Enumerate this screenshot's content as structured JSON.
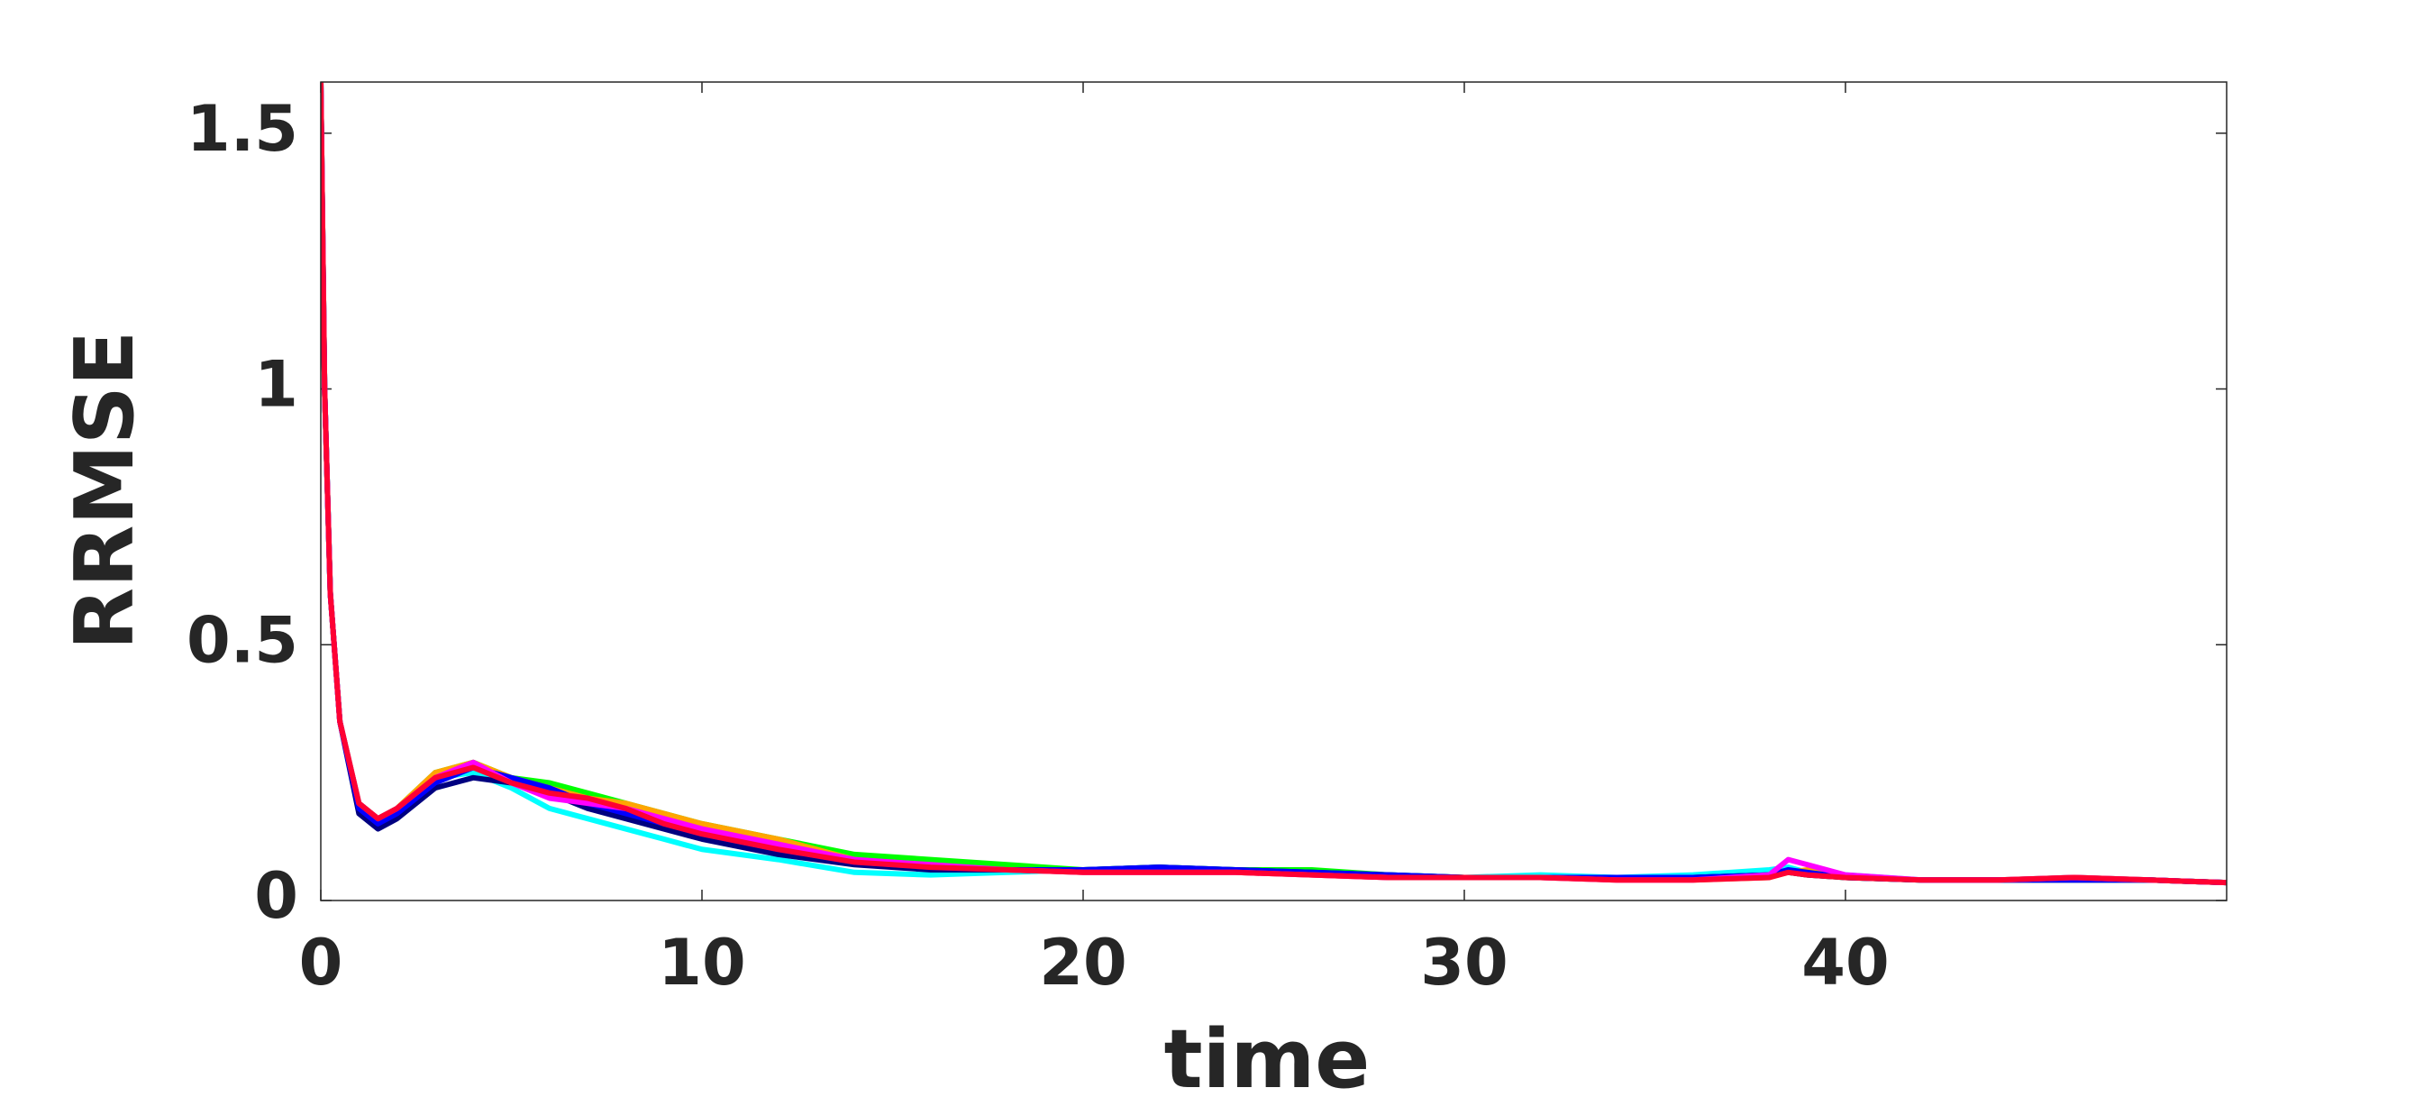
{
  "chart_data": {
    "type": "line",
    "xlabel": "time",
    "ylabel": "RRMSE",
    "xlim": [
      0,
      50
    ],
    "ylim": [
      0,
      1.6
    ],
    "xticks": [
      0,
      10,
      20,
      30,
      40
    ],
    "yticks": [
      0,
      0.5,
      1,
      1.5
    ],
    "x": [
      0,
      0.1,
      0.25,
      0.5,
      1,
      1.5,
      2,
      3,
      4,
      5,
      6,
      7,
      8,
      9,
      10,
      12,
      14,
      16,
      18,
      20,
      22,
      24,
      26,
      28,
      30,
      32,
      34,
      36,
      38,
      38.5,
      39,
      40,
      42,
      44,
      46,
      48,
      50
    ],
    "series": [
      {
        "color": "#00ffff",
        "values": [
          1.6,
          1.0,
          0.6,
          0.35,
          0.19,
          0.16,
          0.18,
          0.24,
          0.25,
          0.22,
          0.18,
          0.16,
          0.14,
          0.12,
          0.1,
          0.08,
          0.055,
          0.05,
          0.055,
          0.06,
          0.065,
          0.06,
          0.055,
          0.05,
          0.045,
          0.05,
          0.045,
          0.05,
          0.06,
          0.065,
          0.055,
          0.05,
          0.04,
          0.04,
          0.045,
          0.04,
          0.035
        ]
      },
      {
        "color": "#00ff00",
        "values": [
          1.6,
          1.0,
          0.6,
          0.35,
          0.19,
          0.16,
          0.18,
          0.25,
          0.27,
          0.24,
          0.23,
          0.21,
          0.19,
          0.17,
          0.15,
          0.12,
          0.09,
          0.08,
          0.07,
          0.06,
          0.065,
          0.06,
          0.06,
          0.05,
          0.045,
          0.045,
          0.045,
          0.045,
          0.05,
          0.055,
          0.05,
          0.045,
          0.04,
          0.04,
          0.04,
          0.04,
          0.035
        ]
      },
      {
        "color": "#ffa500",
        "values": [
          1.6,
          1.0,
          0.6,
          0.35,
          0.19,
          0.16,
          0.18,
          0.25,
          0.27,
          0.24,
          0.22,
          0.2,
          0.19,
          0.17,
          0.15,
          0.12,
          0.08,
          0.065,
          0.06,
          0.055,
          0.055,
          0.055,
          0.05,
          0.045,
          0.045,
          0.045,
          0.04,
          0.04,
          0.045,
          0.055,
          0.06,
          0.045,
          0.04,
          0.04,
          0.045,
          0.04,
          0.035
        ]
      },
      {
        "color": "#000080",
        "values": [
          1.6,
          1.0,
          0.6,
          0.35,
          0.17,
          0.14,
          0.16,
          0.22,
          0.24,
          0.23,
          0.21,
          0.18,
          0.16,
          0.14,
          0.12,
          0.09,
          0.07,
          0.06,
          0.06,
          0.06,
          0.065,
          0.06,
          0.055,
          0.05,
          0.045,
          0.045,
          0.045,
          0.045,
          0.05,
          0.055,
          0.05,
          0.045,
          0.04,
          0.04,
          0.04,
          0.04,
          0.035
        ]
      },
      {
        "color": "#0000ff",
        "values": [
          1.6,
          1.0,
          0.6,
          0.35,
          0.18,
          0.15,
          0.17,
          0.23,
          0.26,
          0.24,
          0.22,
          0.19,
          0.17,
          0.15,
          0.13,
          0.1,
          0.075,
          0.065,
          0.06,
          0.06,
          0.065,
          0.06,
          0.055,
          0.05,
          0.045,
          0.045,
          0.045,
          0.045,
          0.05,
          0.06,
          0.055,
          0.045,
          0.04,
          0.04,
          0.04,
          0.04,
          0.035
        ]
      },
      {
        "color": "#ff00ff",
        "values": [
          1.6,
          1.0,
          0.6,
          0.35,
          0.19,
          0.16,
          0.18,
          0.24,
          0.27,
          0.23,
          0.2,
          0.19,
          0.18,
          0.16,
          0.14,
          0.11,
          0.08,
          0.07,
          0.06,
          0.055,
          0.055,
          0.055,
          0.05,
          0.045,
          0.045,
          0.045,
          0.04,
          0.04,
          0.05,
          0.08,
          0.07,
          0.05,
          0.04,
          0.04,
          0.045,
          0.04,
          0.035
        ]
      },
      {
        "color": "#ff0033",
        "values": [
          1.6,
          1.0,
          0.6,
          0.35,
          0.19,
          0.16,
          0.18,
          0.24,
          0.26,
          0.23,
          0.21,
          0.2,
          0.18,
          0.15,
          0.13,
          0.1,
          0.075,
          0.065,
          0.06,
          0.055,
          0.055,
          0.055,
          0.05,
          0.045,
          0.045,
          0.045,
          0.04,
          0.04,
          0.045,
          0.055,
          0.05,
          0.045,
          0.04,
          0.04,
          0.045,
          0.04,
          0.035
        ]
      }
    ]
  }
}
